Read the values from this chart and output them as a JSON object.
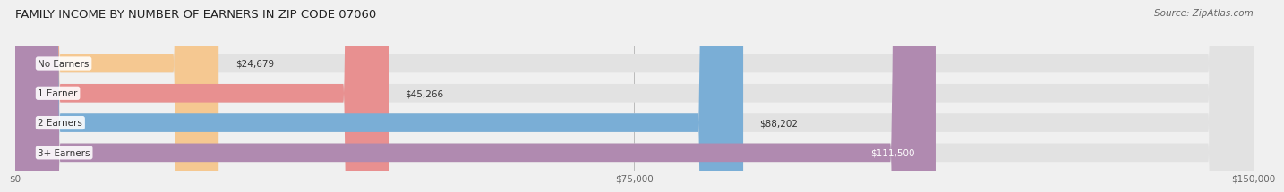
{
  "title": "FAMILY INCOME BY NUMBER OF EARNERS IN ZIP CODE 07060",
  "source": "Source: ZipAtlas.com",
  "categories": [
    "No Earners",
    "1 Earner",
    "2 Earners",
    "3+ Earners"
  ],
  "values": [
    24679,
    45266,
    88202,
    111500
  ],
  "bar_colors": [
    "#f5c891",
    "#e89090",
    "#7aaed6",
    "#b08ab0"
  ],
  "label_colors": [
    "#333333",
    "#333333",
    "#333333",
    "#ffffff"
  ],
  "value_labels": [
    "$24,679",
    "$45,266",
    "$88,202",
    "$111,500"
  ],
  "xlim": [
    0,
    150000
  ],
  "xticks": [
    0,
    75000,
    150000
  ],
  "xticklabels": [
    "$0",
    "$75,000",
    "$150,000"
  ],
  "background_color": "#f0f0f0",
  "bar_background_color": "#e2e2e2",
  "title_fontsize": 9.5,
  "source_fontsize": 7.5,
  "label_fontsize": 7.5,
  "value_fontsize": 7.5
}
